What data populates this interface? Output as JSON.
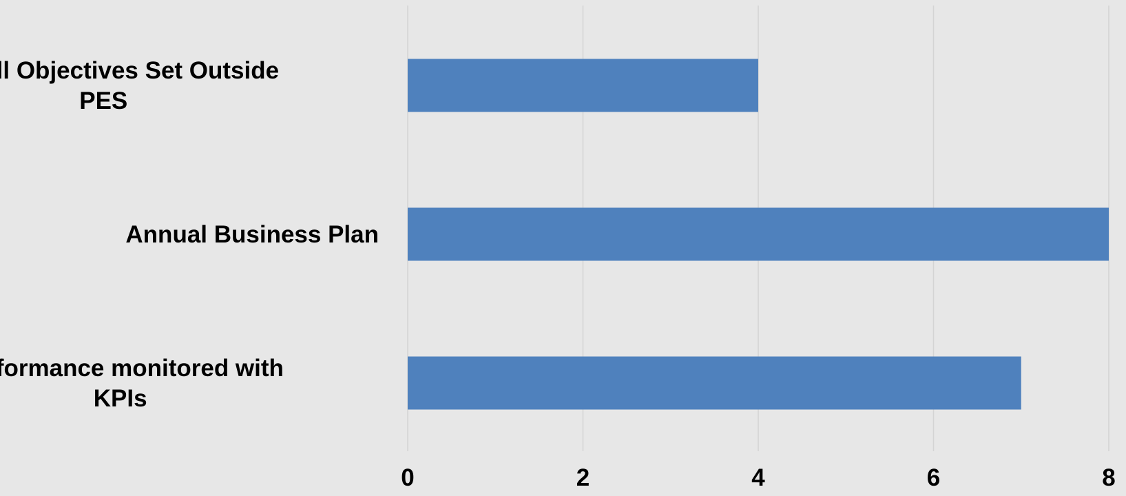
{
  "chart_data": {
    "type": "bar",
    "orientation": "horizontal",
    "categories": [
      [
        "Overall Objectives Set Outside",
        "PES"
      ],
      [
        "Annual Business Plan"
      ],
      [
        "Performance monitored with",
        "KPIs"
      ]
    ],
    "values": [
      4,
      8,
      7
    ],
    "title": "",
    "xlabel": "",
    "ylabel": "",
    "xlim": [
      0,
      8
    ],
    "xticks": [
      "0",
      "2",
      "4",
      "6",
      "8"
    ],
    "grid": true,
    "legend": "none",
    "colors": {
      "bar": "#4f81bd",
      "background": "#e7e7e7",
      "gridline": "#d4d4d4",
      "text": "#000000"
    }
  }
}
